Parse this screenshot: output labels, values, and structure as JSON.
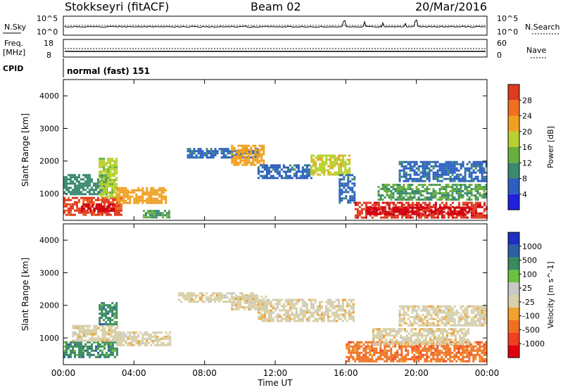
{
  "header": {
    "station": "Stokkseyri (fitACF)",
    "beam": "Beam 02",
    "date": "20/Mar/2016"
  },
  "noise_panel": {
    "left_label": "N.Sky",
    "right_label": "N.Search",
    "left_ticks": [
      "10^5",
      "10^0"
    ],
    "right_ticks": [
      "10^5",
      "10^0"
    ]
  },
  "freq_panel": {
    "left_label_1": "Freq.",
    "left_label_2": "[MHz]",
    "left_ticks": [
      "18",
      "8"
    ],
    "right_label": "Nave",
    "right_ticks": [
      "60",
      "0"
    ]
  },
  "cpid_panel": {
    "label": "CPID",
    "text": "normal (fast) 151"
  },
  "colors": {
    "power": [
      "#1f1fe0",
      "#2b5fc0",
      "#3a8a70",
      "#6ab040",
      "#b8d030",
      "#f0a020",
      "#f07020",
      "#e03a20",
      "#d00010"
    ],
    "velocity": [
      "#e00010",
      "#f04020",
      "#f07020",
      "#f2a030",
      "#d8d0a8",
      "#c8c8c8",
      "#6cc040",
      "#3a8a60",
      "#2b5fa0",
      "#1a30c0"
    ],
    "missing": "#c8c8c8"
  },
  "chart_data": [
    {
      "type": "heatmap",
      "title": "",
      "xlabel": "Time UT",
      "ylabel": "Slant Range [km]",
      "xlim": [
        "00:00",
        "24:00"
      ],
      "ylim": [
        180,
        4500
      ],
      "x_ticks": [
        "00:00",
        "04:00",
        "08:00",
        "12:00",
        "16:00",
        "20:00",
        "00:00"
      ],
      "y_ticks": [
        1000,
        2000,
        3000,
        4000
      ],
      "colorbar": {
        "label": "Power [dB]",
        "ticks": [
          4,
          8,
          12,
          16,
          20,
          24,
          28
        ],
        "range": [
          0,
          30
        ]
      },
      "regions": [
        {
          "t0": 0.0,
          "t1": 3.3,
          "r0": 350,
          "r1": 900,
          "value": 24
        },
        {
          "t0": 1.0,
          "t1": 2.9,
          "r0": 500,
          "r1": 700,
          "value": 28
        },
        {
          "t0": 0.0,
          "t1": 2.5,
          "r0": 1000,
          "r1": 1600,
          "value": 8
        },
        {
          "t0": 2.0,
          "t1": 3.0,
          "r0": 900,
          "r1": 2100,
          "value": 14
        },
        {
          "t0": 3.0,
          "t1": 5.8,
          "r0": 700,
          "r1": 1200,
          "value": 18
        },
        {
          "t0": 4.5,
          "t1": 6.0,
          "r0": 280,
          "r1": 500,
          "value": 10
        },
        {
          "t0": 7.0,
          "t1": 11.0,
          "r0": 2100,
          "r1": 2400,
          "value": 6
        },
        {
          "t0": 9.5,
          "t1": 11.3,
          "r0": 1900,
          "r1": 2500,
          "value": 18
        },
        {
          "t0": 11.0,
          "t1": 14.0,
          "r0": 1500,
          "r1": 1900,
          "value": 6
        },
        {
          "t0": 14.0,
          "t1": 16.2,
          "r0": 1600,
          "r1": 2200,
          "value": 16
        },
        {
          "t0": 15.6,
          "t1": 16.5,
          "r0": 700,
          "r1": 1600,
          "value": 6
        },
        {
          "t0": 16.5,
          "t1": 24.0,
          "r0": 250,
          "r1": 750,
          "value": 26
        },
        {
          "t0": 17.2,
          "t1": 23.0,
          "r0": 400,
          "r1": 600,
          "value": 28
        },
        {
          "t0": 17.8,
          "t1": 24.0,
          "r0": 800,
          "r1": 1300,
          "value": 10
        },
        {
          "t0": 19.0,
          "t1": 24.0,
          "r0": 1400,
          "r1": 2000,
          "value": 6
        }
      ]
    },
    {
      "type": "heatmap",
      "title": "",
      "xlabel": "Time UT",
      "ylabel": "Slant Range [km]",
      "xlim": [
        "00:00",
        "24:00"
      ],
      "ylim": [
        180,
        4500
      ],
      "x_ticks": [
        "00:00",
        "04:00",
        "08:00",
        "12:00",
        "16:00",
        "20:00",
        "00:00"
      ],
      "y_ticks": [
        1000,
        2000,
        3000,
        4000
      ],
      "colorbar": {
        "label": "Velocity [m s^-1]",
        "ticks": [
          "1000",
          "500",
          "100",
          "25",
          "-25",
          "-100",
          "-500",
          "-1000"
        ]
      },
      "regions": [
        {
          "t0": 0.0,
          "t1": 3.0,
          "r0": 400,
          "r1": 900,
          "value": 150
        },
        {
          "t0": 0.5,
          "t1": 3.2,
          "r0": 900,
          "r1": 1400,
          "value": 0
        },
        {
          "t0": 2.0,
          "t1": 3.0,
          "r0": 1400,
          "r1": 2100,
          "value": 300
        },
        {
          "t0": 3.0,
          "t1": 6.0,
          "r0": 800,
          "r1": 1200,
          "value": 0
        },
        {
          "t0": 6.5,
          "t1": 11.0,
          "r0": 2100,
          "r1": 2400,
          "value": 0
        },
        {
          "t0": 9.5,
          "t1": 11.5,
          "r0": 1900,
          "r1": 2300,
          "value": 0
        },
        {
          "t0": 11.0,
          "t1": 16.5,
          "r0": 1500,
          "r1": 2200,
          "value": 0
        },
        {
          "t0": 16.0,
          "t1": 24.0,
          "r0": 300,
          "r1": 900,
          "value": -200
        },
        {
          "t0": 17.5,
          "t1": 23.0,
          "r0": 800,
          "r1": 1300,
          "value": 0
        },
        {
          "t0": 19.0,
          "t1": 24.0,
          "r0": 1400,
          "r1": 2000,
          "value": 0
        }
      ]
    }
  ],
  "panel_time_axis": {
    "x_ticks": [
      "00:00",
      "04:00",
      "08:00",
      "12:00",
      "16:00",
      "20:00",
      "00:00"
    ],
    "xlabel": "Time UT"
  }
}
